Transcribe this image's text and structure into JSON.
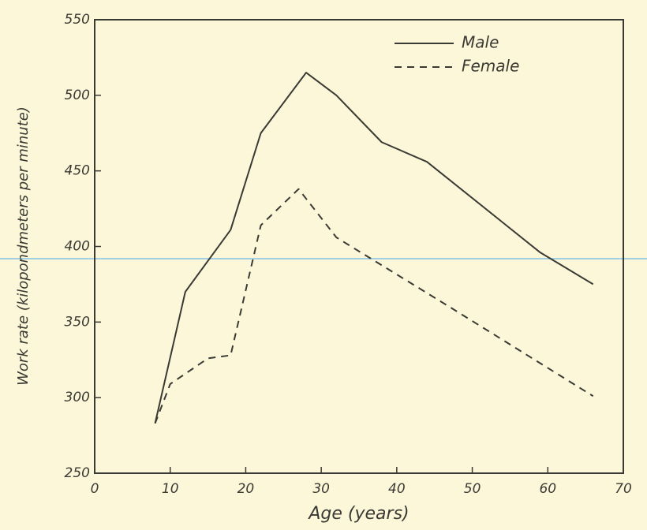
{
  "chart_data": {
    "type": "line",
    "x_label": "Age (years)",
    "y_label": "Work rate (kilopondmeters per minute)",
    "xlim": [
      0,
      70
    ],
    "xticks": [
      0,
      10,
      20,
      30,
      40,
      50,
      60,
      70
    ],
    "ylim": [
      250,
      550
    ],
    "yticks": [
      250,
      300,
      350,
      400,
      450,
      500,
      550
    ],
    "legend": "upper right",
    "series": [
      {
        "name": "Male",
        "color": "#3a3a34",
        "line_style": "solid",
        "x": [
          8,
          12,
          18,
          22,
          28,
          32,
          38,
          44,
          59,
          66
        ],
        "values": [
          283,
          370,
          411,
          475,
          515,
          500,
          469,
          456,
          396,
          375
        ]
      },
      {
        "name": "Female",
        "color": "#3a3a34",
        "line_style": "dashed",
        "x": [
          8,
          10,
          15,
          18,
          22,
          27,
          32,
          47,
          66
        ],
        "values": [
          283,
          309,
          326,
          328,
          414,
          438,
          406,
          360,
          301
        ]
      }
    ]
  }
}
